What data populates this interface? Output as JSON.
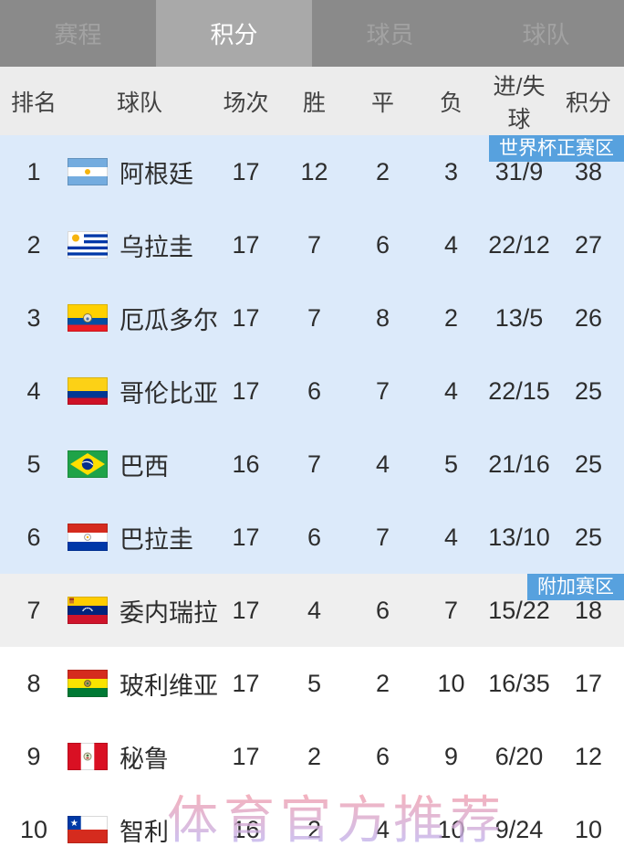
{
  "tabs": [
    {
      "label": "赛程",
      "selected": false
    },
    {
      "label": "积分",
      "selected": true
    },
    {
      "label": "球员",
      "selected": false
    },
    {
      "label": "球队",
      "selected": false
    }
  ],
  "table": {
    "headers": {
      "rank": "排名",
      "team": "球队",
      "played": "场次",
      "win": "胜",
      "draw": "平",
      "loss": "负",
      "goals": "进/失球",
      "points": "积分"
    },
    "rows": [
      {
        "rank": "1",
        "team": "阿根廷",
        "flag": "argentina",
        "played": "17",
        "win": "12",
        "draw": "2",
        "loss": "3",
        "goals": "31/9",
        "points": "38",
        "section": "qualification",
        "badge": "世界杯正赛区"
      },
      {
        "rank": "2",
        "team": "乌拉圭",
        "flag": "uruguay",
        "played": "17",
        "win": "7",
        "draw": "6",
        "loss": "4",
        "goals": "22/12",
        "points": "27",
        "section": "qualification",
        "badge": ""
      },
      {
        "rank": "3",
        "team": "厄瓜多尔",
        "flag": "ecuador",
        "played": "17",
        "win": "7",
        "draw": "8",
        "loss": "2",
        "goals": "13/5",
        "points": "26",
        "section": "qualification",
        "badge": ""
      },
      {
        "rank": "4",
        "team": "哥伦比亚",
        "flag": "colombia",
        "played": "17",
        "win": "6",
        "draw": "7",
        "loss": "4",
        "goals": "22/15",
        "points": "25",
        "section": "qualification",
        "badge": ""
      },
      {
        "rank": "5",
        "team": "巴西",
        "flag": "brazil",
        "played": "16",
        "win": "7",
        "draw": "4",
        "loss": "5",
        "goals": "21/16",
        "points": "25",
        "section": "qualification",
        "badge": ""
      },
      {
        "rank": "6",
        "team": "巴拉圭",
        "flag": "paraguay",
        "played": "17",
        "win": "6",
        "draw": "7",
        "loss": "4",
        "goals": "13/10",
        "points": "25",
        "section": "qualification",
        "badge": ""
      },
      {
        "rank": "7",
        "team": "委内瑞拉",
        "flag": "venezuela",
        "played": "17",
        "win": "4",
        "draw": "6",
        "loss": "7",
        "goals": "15/22",
        "points": "18",
        "section": "playoff",
        "badge": "附加赛区"
      },
      {
        "rank": "8",
        "team": "玻利维亚",
        "flag": "bolivia",
        "played": "17",
        "win": "5",
        "draw": "2",
        "loss": "10",
        "goals": "16/35",
        "points": "17",
        "section": "none",
        "badge": ""
      },
      {
        "rank": "9",
        "team": "秘鲁",
        "flag": "peru",
        "played": "17",
        "win": "2",
        "draw": "6",
        "loss": "9",
        "goals": "6/20",
        "points": "12",
        "section": "none",
        "badge": ""
      },
      {
        "rank": "10",
        "team": "智利",
        "flag": "chile",
        "played": "16",
        "win": "2",
        "draw": "4",
        "loss": "10",
        "goals": "9/24",
        "points": "10",
        "section": "none",
        "badge": ""
      }
    ]
  },
  "watermark": "体育官方推荐",
  "colors": {
    "badge_blue": "#57a1de",
    "qualification_row_bg": "#dceafa",
    "playoff_row_bg": "#efefef",
    "tab_active_bg": "#a9a9a9",
    "tab_bg": "#8a8a8a",
    "header_bg": "#ececec"
  }
}
